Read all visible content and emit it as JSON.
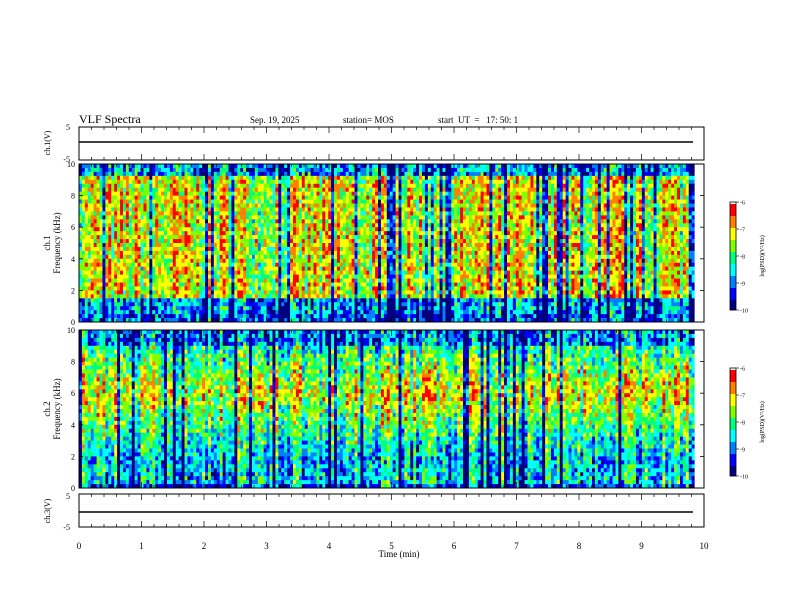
{
  "header": {
    "title": "VLF Spectra",
    "date": "Sep. 19, 2025",
    "station": "station= MOS",
    "start_ut": "start  UT  =   17: 50: 1"
  },
  "colors": {
    "colormap": [
      "#00007f",
      "#0000ff",
      "#0080ff",
      "#00ffff",
      "#00ff80",
      "#80ff00",
      "#ffff00",
      "#ff8000",
      "#ff0000",
      "#ffffff"
    ]
  },
  "chart_data": [
    {
      "type": "line",
      "name": "ch1-waveform",
      "ylabel": "ch.1(V)",
      "ylim": [
        -5,
        5
      ],
      "yticks": [
        "5",
        "-5"
      ],
      "xlim": [
        0,
        10
      ],
      "level": 0,
      "grid": false
    },
    {
      "type": "heatmap",
      "name": "ch1-spectrogram",
      "ylabel": "ch.1\nFrequency (kHz)",
      "ylabel_lines": [
        "ch.1",
        "Frequency (kHz)"
      ],
      "ylim": [
        0,
        10
      ],
      "yticks": [
        "0",
        "2",
        "4",
        "6",
        "8",
        "10"
      ],
      "xlim": [
        0,
        9.85
      ],
      "colorbar": {
        "label": "log(PSD)(V²/Hz)",
        "range": [
          -10,
          -6
        ],
        "ticks": [
          "-6",
          "-7",
          "-8",
          "-9",
          "-10"
        ]
      },
      "profile": "broadband"
    },
    {
      "type": "heatmap",
      "name": "ch2-spectrogram",
      "ylabel": "ch.2\nFrequency (kHz)",
      "ylabel_lines": [
        "ch.2",
        "Frequency (kHz)"
      ],
      "ylim": [
        0,
        10
      ],
      "yticks": [
        "0",
        "2",
        "4",
        "6",
        "8",
        "10"
      ],
      "xlim": [
        0,
        9.85
      ],
      "colorbar": {
        "label": "log(PSD)(V²/Hz)",
        "range": [
          -10,
          -6
        ],
        "ticks": [
          "-6",
          "-7",
          "-8",
          "-9",
          "-10"
        ]
      },
      "profile": "midband-peak"
    },
    {
      "type": "line",
      "name": "ch3-waveform",
      "ylabel": "ch.3(V)",
      "ylim": [
        -5,
        5
      ],
      "yticks": [
        "5",
        "-5"
      ],
      "xlim": [
        0,
        10
      ],
      "level": 0,
      "grid": false
    }
  ],
  "xaxis": {
    "label": "Time (min)",
    "range": [
      0,
      10
    ],
    "ticks": [
      "0",
      "1",
      "2",
      "3",
      "4",
      "5",
      "6",
      "7",
      "8",
      "9",
      "10"
    ]
  }
}
